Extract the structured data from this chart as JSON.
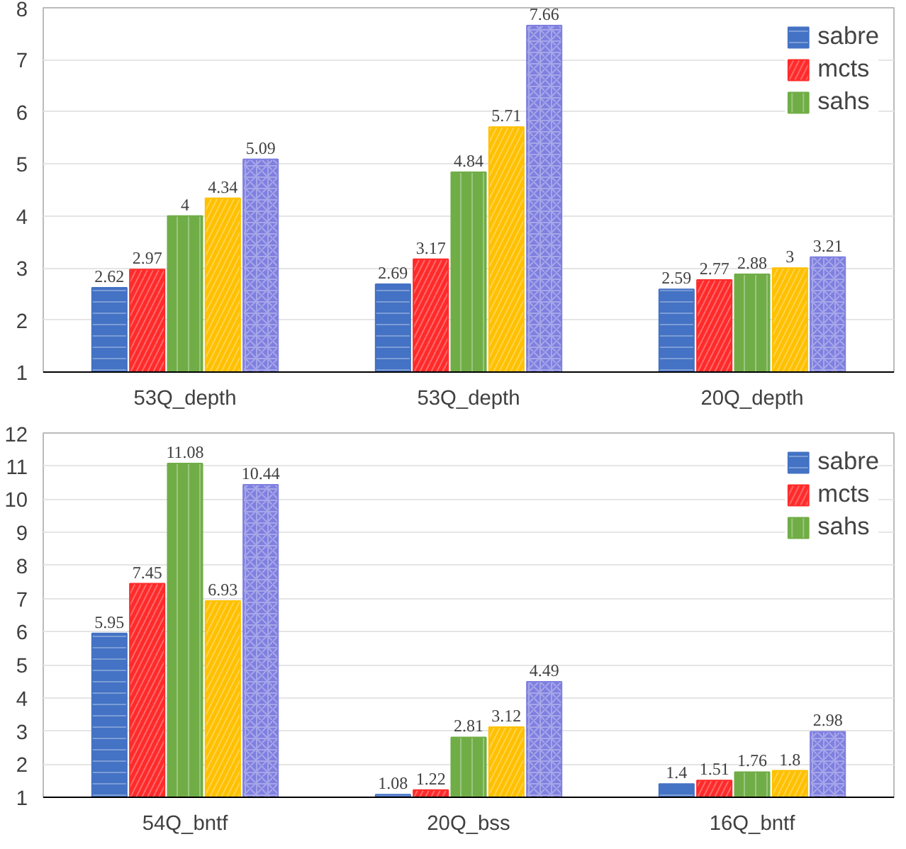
{
  "chart_data": [
    {
      "type": "bar",
      "categories": [
        "53Q_depth",
        "53Q_depth",
        "20Q_depth"
      ],
      "ylim": [
        1,
        8
      ],
      "yticks": [
        1,
        2,
        3,
        4,
        5,
        6,
        7,
        8
      ],
      "grid": "y",
      "legend": "top right",
      "data_labels": true,
      "series": [
        {
          "name": "sabre",
          "color": "#4472c4",
          "values": [
            2.62,
            2.69,
            2.59
          ]
        },
        {
          "name": "mcts",
          "color": "#ff2a2a",
          "values": [
            2.97,
            3.17,
            2.77
          ]
        },
        {
          "name": "sahs",
          "color": "#70ad47",
          "values": [
            4,
            4.84,
            2.88
          ]
        },
        {
          "color": "#ffc000",
          "values": [
            4.34,
            5.71,
            3
          ]
        },
        {
          "color": "#7f7fe0",
          "values": [
            5.09,
            7.66,
            3.21
          ]
        }
      ]
    },
    {
      "type": "bar",
      "categories": [
        "54Q_bntf",
        "20Q_bss",
        "16Q_bntf"
      ],
      "ylim": [
        1,
        12
      ],
      "yticks": [
        1,
        2,
        3,
        4,
        5,
        6,
        7,
        8,
        9,
        10,
        11,
        12
      ],
      "grid": "y",
      "legend": "top right",
      "data_labels": true,
      "series": [
        {
          "name": "sabre",
          "color": "#4472c4",
          "values": [
            5.95,
            1.08,
            1.4
          ]
        },
        {
          "name": "mcts",
          "color": "#ff2a2a",
          "values": [
            7.45,
            1.22,
            1.51
          ]
        },
        {
          "name": "sahs",
          "color": "#70ad47",
          "values": [
            11.08,
            2.81,
            1.76
          ]
        },
        {
          "color": "#ffc000",
          "values": [
            6.93,
            3.12,
            1.8
          ]
        },
        {
          "color": "#7f7fe0",
          "values": [
            10.44,
            4.49,
            2.98
          ]
        }
      ]
    }
  ]
}
